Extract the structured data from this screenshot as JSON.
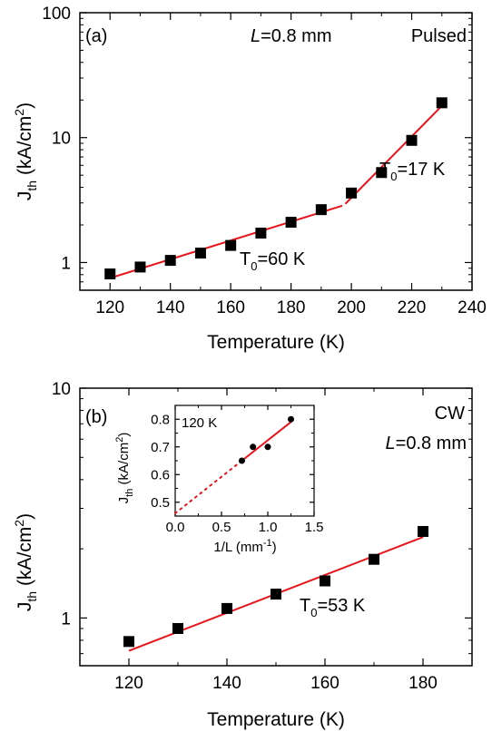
{
  "chart_data": [
    {
      "type": "scatter",
      "panel_label": "(a)",
      "annotations": {
        "length_label": "=0.8 mm",
        "length_var": "L",
        "mode": "Pulsed"
      },
      "xlabel": "Temperature (K)",
      "ylabel": {
        "base": "J",
        "sub": "th",
        "unit_pre": " (kA/cm",
        "unit_sup": "2",
        "unit_post": ")"
      },
      "xlim": [
        110,
        240
      ],
      "ylim": [
        0.6,
        100
      ],
      "y_scale": "log",
      "xticks": [
        "120",
        "140",
        "160",
        "180",
        "200",
        "220",
        "240"
      ],
      "yticks": [
        "1",
        "10",
        "100"
      ],
      "series": [
        {
          "marker": "square",
          "x": [
            120,
            130,
            140,
            150,
            160,
            170,
            180,
            190,
            200,
            210,
            220,
            230
          ],
          "y": [
            0.81,
            0.92,
            1.04,
            1.19,
            1.37,
            1.72,
            2.1,
            2.65,
            3.6,
            5.25,
            9.5,
            19.0
          ]
        }
      ],
      "fits": [
        {
          "label_base": "T",
          "label_sub": "0",
          "label_rest": "=60 K",
          "x": [
            120,
            197
          ],
          "y": [
            0.75,
            2.85
          ]
        },
        {
          "label_base": "T",
          "label_sub": "0",
          "label_rest": "=17 K",
          "x": [
            198,
            231
          ],
          "y": [
            2.95,
            19.0
          ]
        }
      ],
      "fit_color": "#e8141b"
    },
    {
      "type": "scatter",
      "panel_label": "(b)",
      "annotations": {
        "mode": "CW",
        "length_label": "=0.8 mm",
        "length_var": "L"
      },
      "xlabel": "Temperature (K)",
      "ylabel": {
        "base": "J",
        "sub": "th",
        "unit_pre": " (kA/cm",
        "unit_sup": "2",
        "unit_post": ")"
      },
      "xlim": [
        110,
        190
      ],
      "ylim": [
        0.62,
        10
      ],
      "y_scale": "log",
      "xticks": [
        "120",
        "140",
        "160",
        "180"
      ],
      "yticks": [
        "1",
        "10"
      ],
      "series": [
        {
          "marker": "square",
          "x": [
            120,
            130,
            140,
            150,
            160,
            170,
            180
          ],
          "y": [
            0.79,
            0.9,
            1.1,
            1.27,
            1.45,
            1.8,
            2.38
          ]
        }
      ],
      "fits": [
        {
          "label_base": "T",
          "label_sub": "0",
          "label_rest": "=53 K",
          "x": [
            120,
            180
          ],
          "y": [
            0.72,
            2.25
          ]
        }
      ],
      "fit_color": "#e8141b",
      "inset": {
        "type": "scatter",
        "annotation": "120 K",
        "xlabel": {
          "pre": "1/L (mm",
          "sup": "-1",
          "post": ")"
        },
        "ylabel": {
          "base": "J",
          "sub": "th",
          "unit_pre": " (kA/cm",
          "unit_sup": "2",
          "unit_post": ")"
        },
        "xlim": [
          0,
          1.5
        ],
        "ylim": [
          0.45,
          0.85
        ],
        "xticks": [
          "0.0",
          "0.5",
          "1.0",
          "1.5"
        ],
        "yticks": [
          "0.5",
          "0.6",
          "0.7",
          "0.8"
        ],
        "series": [
          {
            "marker": "circle",
            "x": [
              0.72,
              0.84,
              1.0,
              1.25
            ],
            "y": [
              0.65,
              0.7,
              0.7,
              0.8
            ]
          }
        ],
        "fit": {
          "x": [
            0.72,
            1.25
          ],
          "y": [
            0.65,
            0.79
          ]
        },
        "extrapolation": {
          "x": [
            0.0,
            0.72
          ],
          "y": [
            0.46,
            0.65
          ]
        }
      }
    }
  ]
}
